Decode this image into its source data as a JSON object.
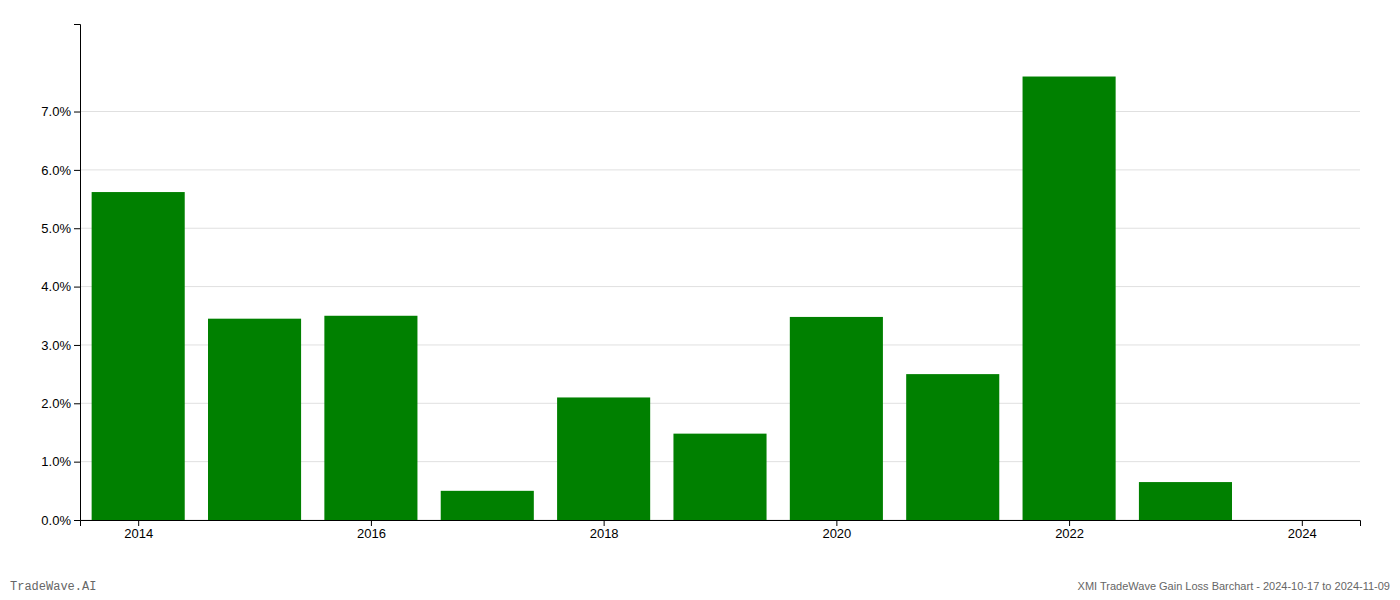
{
  "chart_data": {
    "type": "bar",
    "x": [
      2014,
      2015,
      2016,
      2017,
      2018,
      2019,
      2020,
      2021,
      2022,
      2023
    ],
    "values": [
      0.0562,
      0.0345,
      0.035,
      0.005,
      0.021,
      0.0148,
      0.0348,
      0.025,
      0.076,
      0.0065
    ],
    "color": "#008000",
    "xlim": [
      2013.5,
      2024.5
    ],
    "xticks": [
      2014,
      2016,
      2018,
      2020,
      2022,
      2024
    ],
    "ylim": [
      0.0,
      0.085
    ],
    "yticks": [
      {
        "value": 0.0,
        "label": "0.0%"
      },
      {
        "value": 0.01,
        "label": "1.0%"
      },
      {
        "value": 0.02,
        "label": "2.0%"
      },
      {
        "value": 0.03,
        "label": "3.0%"
      },
      {
        "value": 0.04,
        "label": "4.0%"
      },
      {
        "value": 0.05,
        "label": "5.0%"
      },
      {
        "value": 0.06,
        "label": "6.0%"
      },
      {
        "value": 0.07,
        "label": "7.0%"
      }
    ],
    "grid": true,
    "annotations": [
      "TradeWave.AI",
      "XMI TradeWave Gain Loss Barchart - 2024-10-17 to 2024-11-09"
    ]
  }
}
